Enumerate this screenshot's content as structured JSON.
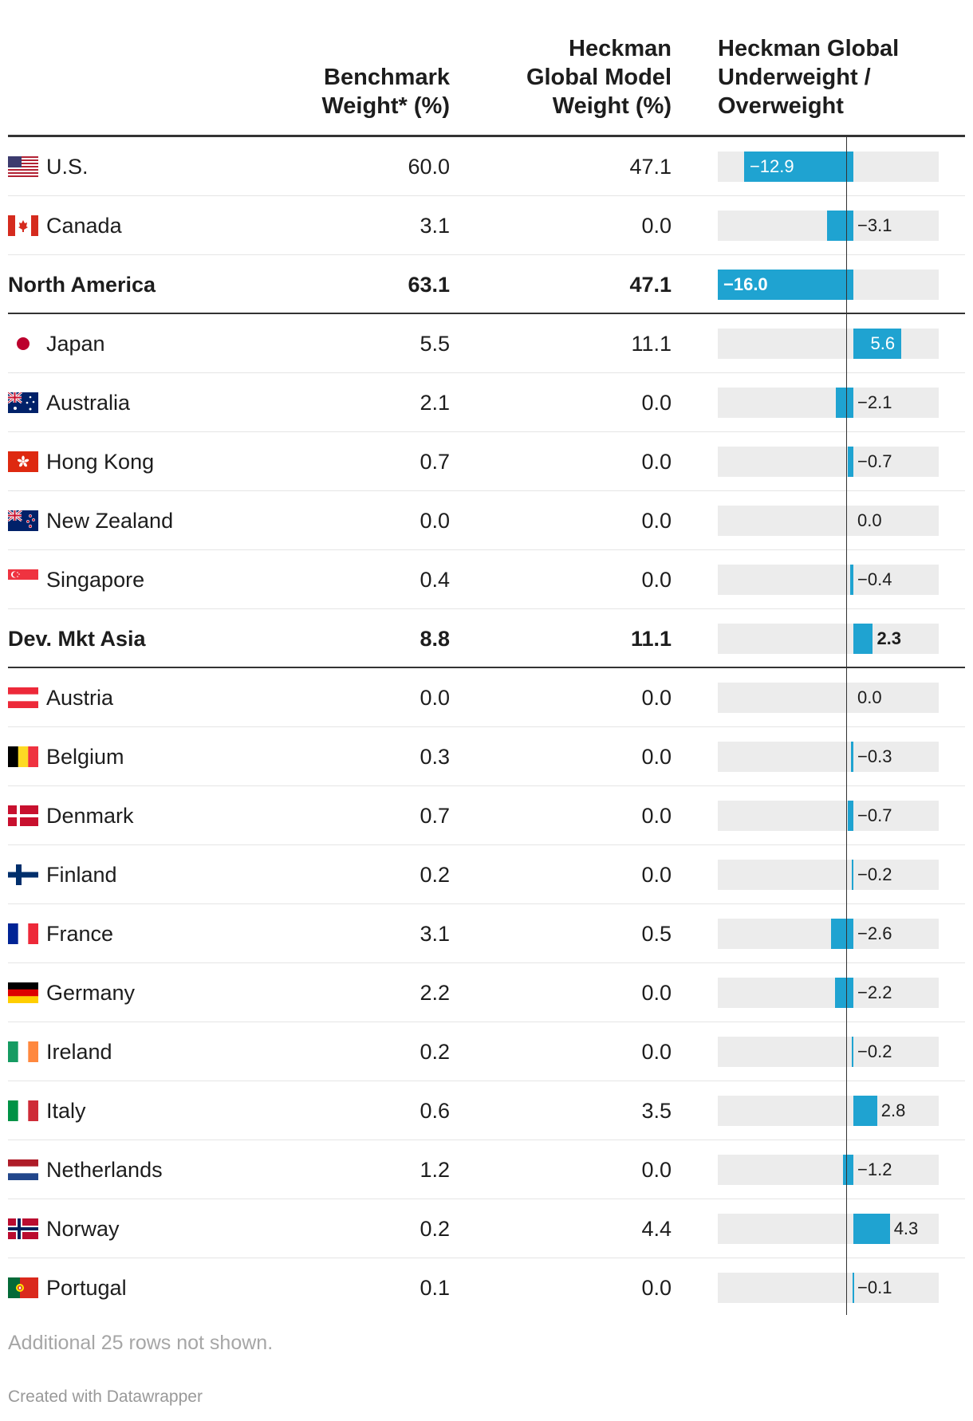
{
  "headers": {
    "benchmark": [
      "Benchmark",
      "Weight* (%)"
    ],
    "model": [
      "Heckman",
      "Global Model",
      "Weight (%)"
    ],
    "diff": [
      "Heckman Global",
      "Underweight /",
      "Overweight"
    ]
  },
  "colors": {
    "bar": "#1fa3d1",
    "track": "#ececec",
    "axis": "#333333"
  },
  "chart_data": {
    "type": "table",
    "columns": [
      "",
      "Benchmark Weight* (%)",
      "Heckman Global Model Weight (%)",
      "Heckman Global Underweight / Overweight"
    ],
    "bar_range": [
      -16.0,
      5.6
    ],
    "rows": [
      {
        "name": "U.S.",
        "flag": "us-flag-icon",
        "benchmark": "60.0",
        "model": "47.1",
        "diff": -12.9,
        "diff_label": "−12.9"
      },
      {
        "name": "Canada",
        "flag": "canada-flag-icon",
        "benchmark": "3.1",
        "model": "0.0",
        "diff": -3.1,
        "diff_label": "−3.1"
      },
      {
        "name": "North America",
        "total": true,
        "benchmark": "63.1",
        "model": "47.1",
        "diff": -16.0,
        "diff_label": "−16.0"
      },
      {
        "name": "Japan",
        "flag": "japan-flag-icon",
        "benchmark": "5.5",
        "model": "11.1",
        "diff": 5.6,
        "diff_label": "5.6"
      },
      {
        "name": "Australia",
        "flag": "australia-flag-icon",
        "benchmark": "2.1",
        "model": "0.0",
        "diff": -2.1,
        "diff_label": "−2.1"
      },
      {
        "name": "Hong Kong",
        "flag": "hong-kong-flag-icon",
        "benchmark": "0.7",
        "model": "0.0",
        "diff": -0.7,
        "diff_label": "−0.7"
      },
      {
        "name": "New Zealand",
        "flag": "new-zealand-flag-icon",
        "benchmark": "0.0",
        "model": "0.0",
        "diff": 0.0,
        "diff_label": "0.0"
      },
      {
        "name": "Singapore",
        "flag": "singapore-flag-icon",
        "benchmark": "0.4",
        "model": "0.0",
        "diff": -0.4,
        "diff_label": "−0.4"
      },
      {
        "name": "Dev. Mkt Asia",
        "total": true,
        "benchmark": "8.8",
        "model": "11.1",
        "diff": 2.3,
        "diff_label": "2.3"
      },
      {
        "name": "Austria",
        "flag": "austria-flag-icon",
        "benchmark": "0.0",
        "model": "0.0",
        "diff": 0.0,
        "diff_label": "0.0"
      },
      {
        "name": "Belgium",
        "flag": "belgium-flag-icon",
        "benchmark": "0.3",
        "model": "0.0",
        "diff": -0.3,
        "diff_label": "−0.3"
      },
      {
        "name": "Denmark",
        "flag": "denmark-flag-icon",
        "benchmark": "0.7",
        "model": "0.0",
        "diff": -0.7,
        "diff_label": "−0.7"
      },
      {
        "name": "Finland",
        "flag": "finland-flag-icon",
        "benchmark": "0.2",
        "model": "0.0",
        "diff": -0.2,
        "diff_label": "−0.2"
      },
      {
        "name": "France",
        "flag": "france-flag-icon",
        "benchmark": "3.1",
        "model": "0.5",
        "diff": -2.6,
        "diff_label": "−2.6"
      },
      {
        "name": "Germany",
        "flag": "germany-flag-icon",
        "benchmark": "2.2",
        "model": "0.0",
        "diff": -2.2,
        "diff_label": "−2.2"
      },
      {
        "name": "Ireland",
        "flag": "ireland-flag-icon",
        "benchmark": "0.2",
        "model": "0.0",
        "diff": -0.2,
        "diff_label": "−0.2"
      },
      {
        "name": "Italy",
        "flag": "italy-flag-icon",
        "benchmark": "0.6",
        "model": "3.5",
        "diff": 2.8,
        "diff_label": "2.8"
      },
      {
        "name": "Netherlands",
        "flag": "netherlands-flag-icon",
        "benchmark": "1.2",
        "model": "0.0",
        "diff": -1.2,
        "diff_label": "−1.2"
      },
      {
        "name": "Norway",
        "flag": "norway-flag-icon",
        "benchmark": "0.2",
        "model": "4.4",
        "diff": 4.3,
        "diff_label": "4.3"
      },
      {
        "name": "Portugal",
        "flag": "portugal-flag-icon",
        "benchmark": "0.1",
        "model": "0.0",
        "diff": -0.1,
        "diff_label": "−0.1"
      }
    ]
  },
  "footer": {
    "note": "Additional 25 rows not shown.",
    "credit": "Created with Datawrapper"
  }
}
